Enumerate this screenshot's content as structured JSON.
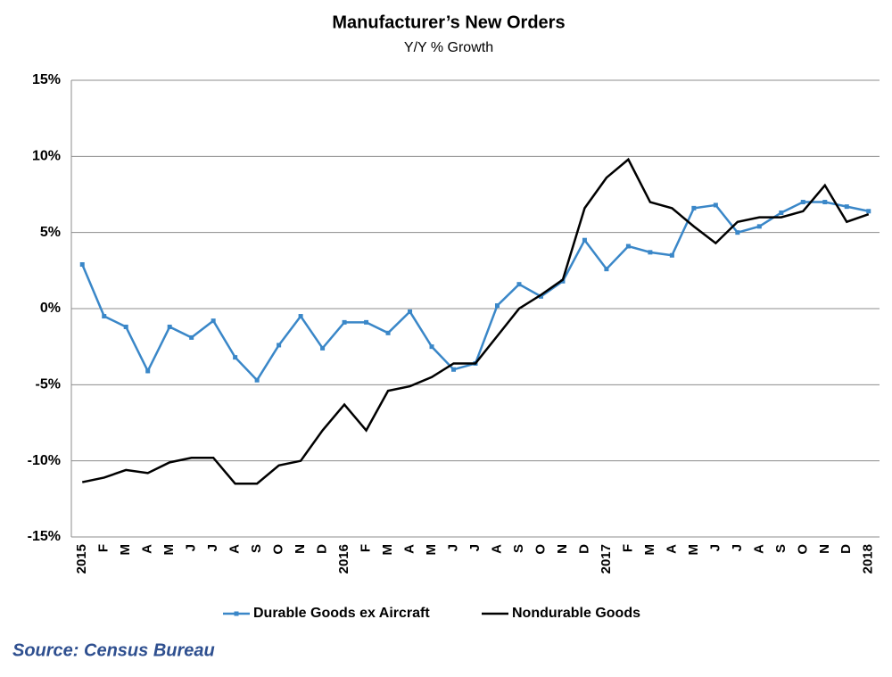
{
  "chart_data": {
    "type": "line",
    "title": "Manufacturer’s New Orders",
    "subtitle": "Y/Y % Growth",
    "source": "Source: Census Bureau",
    "categories": [
      "2015",
      "F",
      "M",
      "A",
      "M",
      "J",
      "J",
      "A",
      "S",
      "O",
      "N",
      "D",
      "2016",
      "F",
      "M",
      "A",
      "M",
      "J",
      "J",
      "A",
      "S",
      "O",
      "N",
      "D",
      "2017",
      "F",
      "M",
      "A",
      "M",
      "J",
      "J",
      "A",
      "S",
      "O",
      "N",
      "D",
      "2018"
    ],
    "series": [
      {
        "name": "Durable Goods ex Aircraft",
        "color": "#3a87c8",
        "marker": true,
        "values": [
          2.9,
          -0.5,
          -1.2,
          -4.1,
          -1.2,
          -1.9,
          -0.8,
          -3.2,
          -4.7,
          -2.4,
          -0.5,
          -2.6,
          -0.9,
          -0.9,
          -1.6,
          -0.2,
          -2.5,
          -4.0,
          -3.6,
          0.2,
          1.6,
          0.8,
          1.8,
          4.5,
          2.6,
          4.1,
          3.7,
          3.5,
          6.6,
          6.8,
          5.0,
          5.4,
          6.3,
          7.0,
          7.0,
          6.7,
          6.4
        ]
      },
      {
        "name": "Nondurable Goods",
        "color": "#000000",
        "marker": false,
        "values": [
          -11.4,
          -11.1,
          -10.6,
          -10.8,
          -10.1,
          -9.8,
          -9.8,
          -11.5,
          -11.5,
          -10.3,
          -10.0,
          -8.0,
          -6.3,
          -8.0,
          -5.4,
          -5.1,
          -4.5,
          -3.6,
          -3.6,
          -1.8,
          0.0,
          0.9,
          1.9,
          6.6,
          8.6,
          9.8,
          7.0,
          6.6,
          5.4,
          4.3,
          5.7,
          6.0,
          6.0,
          6.4,
          8.1,
          5.7,
          6.2
        ]
      }
    ],
    "ylim": [
      -15,
      15
    ],
    "yticks": [
      {
        "value": -15,
        "label": "-15%"
      },
      {
        "value": -10,
        "label": "-10%"
      },
      {
        "value": -5,
        "label": "-5%"
      },
      {
        "value": 0,
        "label": "0%"
      },
      {
        "value": 5,
        "label": "5%"
      },
      {
        "value": 10,
        "label": "10%"
      },
      {
        "value": 15,
        "label": "15%"
      }
    ],
    "grid": true,
    "legend": "bottom"
  }
}
